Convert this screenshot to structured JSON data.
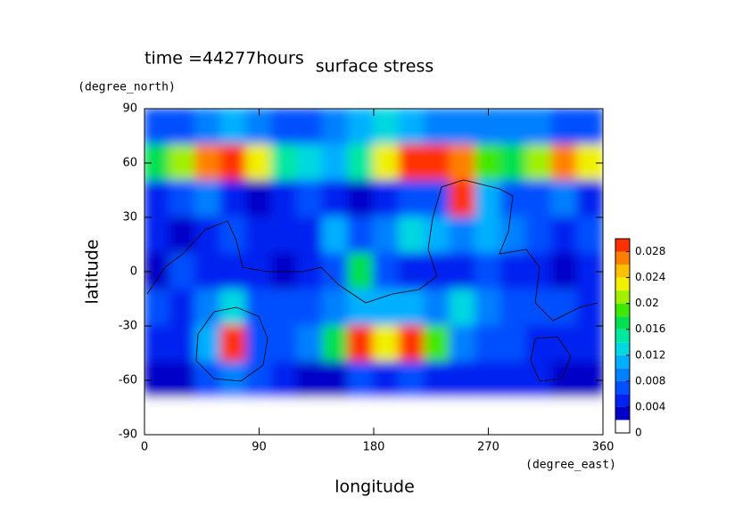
{
  "chart_data": {
    "type": "contour",
    "title": "surface stress",
    "subtitle": "time =44277hours",
    "x_label": "longitude",
    "x_unit": "(degree_east)",
    "y_label": "latitude",
    "y_unit": "(degree_north)",
    "xlim": [
      0,
      360
    ],
    "xticks": [
      0,
      90,
      180,
      270,
      360
    ],
    "ylim": [
      -90,
      90
    ],
    "yticks": [
      -90,
      -60,
      -30,
      0,
      30,
      60,
      90
    ],
    "x": [
      10,
      30,
      50,
      70,
      90,
      110,
      130,
      150,
      170,
      190,
      210,
      230,
      250,
      270,
      290,
      310,
      330,
      350
    ],
    "y": [
      80,
      60,
      40,
      20,
      0,
      -20,
      -40,
      -60,
      -80
    ],
    "z": [
      [
        0.006,
        0.006,
        0.008,
        0.01,
        0.008,
        0.006,
        0.006,
        0.008,
        0.01,
        0.012,
        0.01,
        0.008,
        0.008,
        0.008,
        0.008,
        0.008,
        0.006,
        0.006
      ],
      [
        0.016,
        0.02,
        0.026,
        0.028,
        0.022,
        0.014,
        0.012,
        0.01,
        0.014,
        0.022,
        0.028,
        0.03,
        0.026,
        0.018,
        0.016,
        0.02,
        0.026,
        0.022
      ],
      [
        0.004,
        0.006,
        0.008,
        0.004,
        0.002,
        0.004,
        0.006,
        0.004,
        0.002,
        0.004,
        0.006,
        0.006,
        0.028,
        0.01,
        0.006,
        0.006,
        0.008,
        0.004
      ],
      [
        0.004,
        0.002,
        0.004,
        0.006,
        0.004,
        0.004,
        0.004,
        0.01,
        0.006,
        0.008,
        0.012,
        0.01,
        0.008,
        0.01,
        0.008,
        0.006,
        0.004,
        0.006
      ],
      [
        0.002,
        0.006,
        0.004,
        0.004,
        0.004,
        0.002,
        0.004,
        0.006,
        0.016,
        0.006,
        0.004,
        0.004,
        0.004,
        0.006,
        0.004,
        0.004,
        0.002,
        0.004
      ],
      [
        0.006,
        0.004,
        0.008,
        0.012,
        0.006,
        0.006,
        0.006,
        0.008,
        0.01,
        0.01,
        0.01,
        0.008,
        0.012,
        0.008,
        0.006,
        0.006,
        0.006,
        0.004
      ],
      [
        0.004,
        0.004,
        0.01,
        0.028,
        0.006,
        0.006,
        0.008,
        0.016,
        0.028,
        0.022,
        0.03,
        0.018,
        0.008,
        0.006,
        0.006,
        0.004,
        0.004,
        0.004
      ],
      [
        0.002,
        0.002,
        0.006,
        0.008,
        0.006,
        0.004,
        0.002,
        0.002,
        0.006,
        0.004,
        0.006,
        0.004,
        0.004,
        0.004,
        0.004,
        0.004,
        0.002,
        0.002
      ],
      [
        0,
        0,
        0,
        0,
        0,
        0,
        0,
        0,
        0,
        0,
        0,
        0,
        0,
        0,
        0,
        0,
        0,
        0
      ]
    ],
    "colorbar": {
      "lim": [
        0,
        0.03
      ],
      "ticks": [
        0,
        0.004,
        0.008,
        0.012,
        0.016,
        0.02,
        0.024,
        0.028
      ],
      "levels": [
        0,
        0.002,
        0.004,
        0.006,
        0.008,
        0.01,
        0.012,
        0.014,
        0.016,
        0.018,
        0.02,
        0.022,
        0.024,
        0.026,
        0.028,
        0.03
      ],
      "colors": [
        "#ffffff",
        "#0000c8",
        "#0022f0",
        "#0050ff",
        "#0080ff",
        "#00b0ff",
        "#00d8e0",
        "#00e8a0",
        "#00e050",
        "#40e800",
        "#a0f000",
        "#f0f000",
        "#ffc000",
        "#ff8000",
        "#ff3000"
      ]
    }
  }
}
